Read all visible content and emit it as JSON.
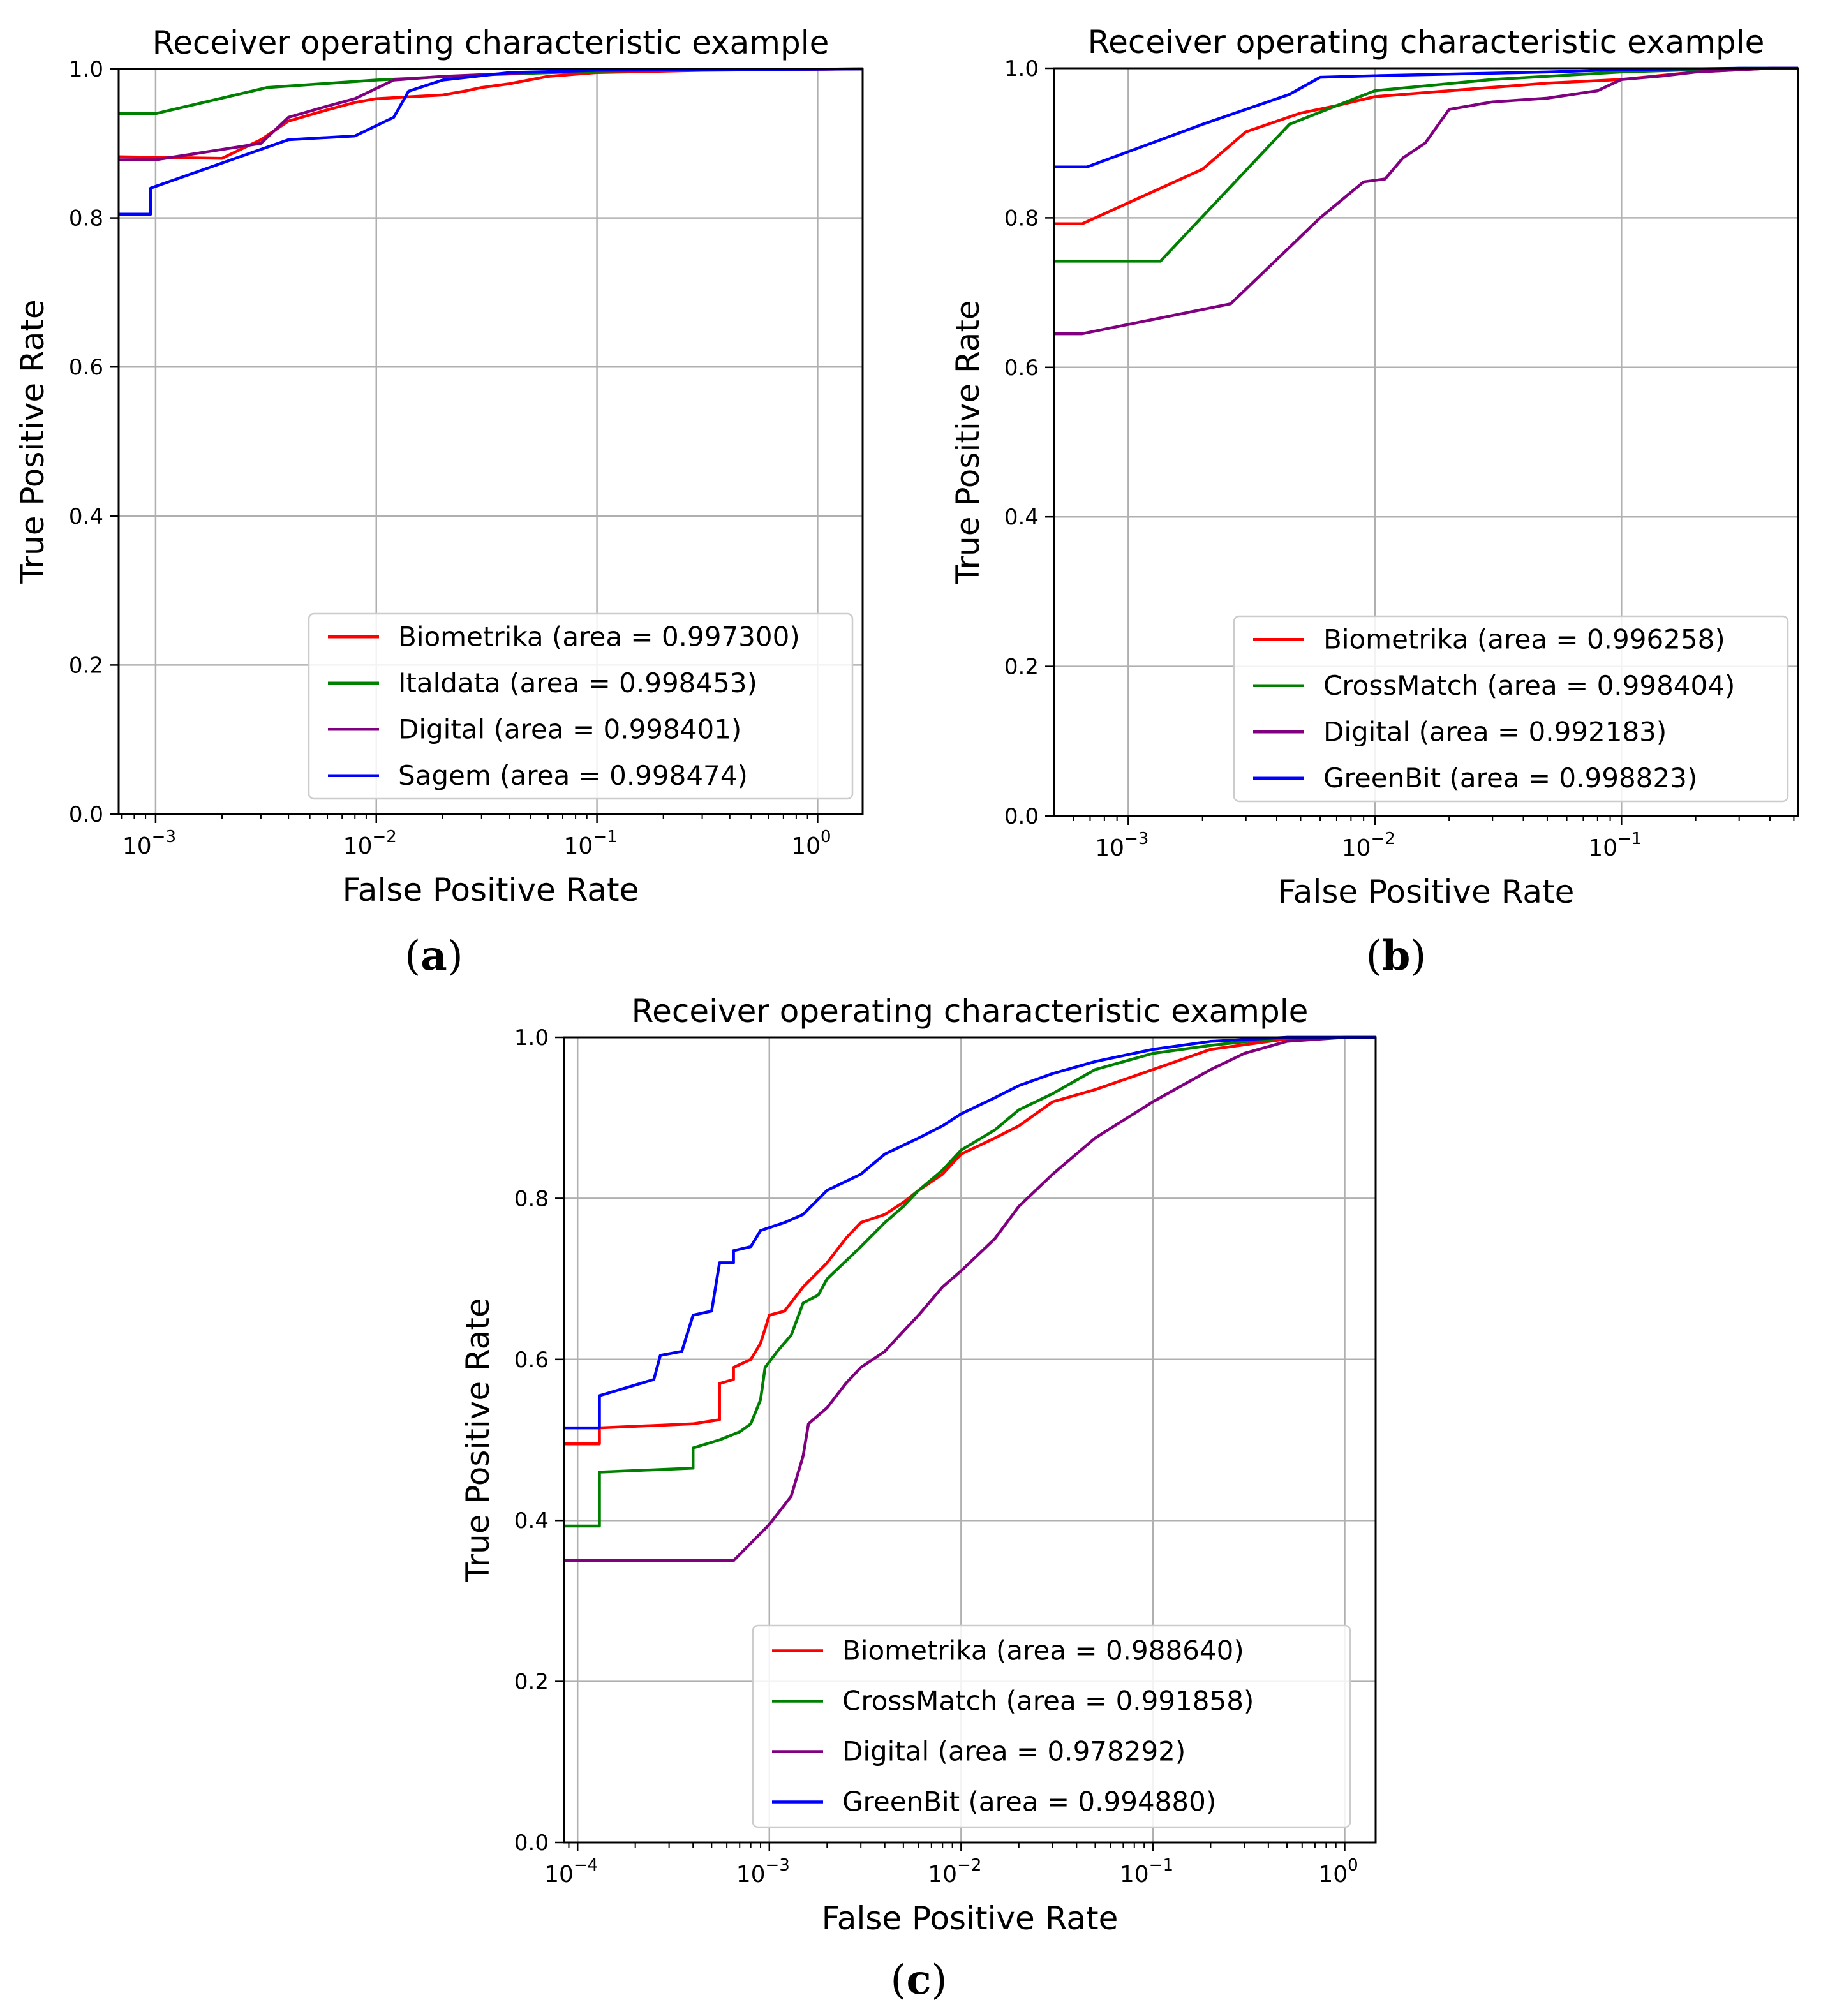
{
  "chart_data": [
    {
      "panel_label": "(a)",
      "label_letter": "a",
      "type": "line",
      "title": "Receiver operating characteristic example",
      "xlabel": "False Positive Rate",
      "ylabel": "True Positive Rate",
      "xscale": "log",
      "xlim": [
        0.00068,
        1.6
      ],
      "ylim": [
        0.0,
        1.0
      ],
      "xticks": [
        {
          "exp": "−3",
          "value": 0.001
        },
        {
          "exp": "−2",
          "value": 0.01
        },
        {
          "exp": "−1",
          "value": 0.1
        },
        {
          "exp": "0",
          "value": 1
        }
      ],
      "tick_base": "10",
      "yticks": [
        "0.0",
        "0.2",
        "0.4",
        "0.6",
        "0.8",
        "1.0"
      ],
      "grid": true,
      "legend_position": "lower-right",
      "series": [
        {
          "name": "Biometrika (area = 0.997300)",
          "color": "#ff0000",
          "points": [
            [
              0.00068,
              0.882
            ],
            [
              0.002,
              0.88
            ],
            [
              0.003,
              0.905
            ],
            [
              0.004,
              0.93
            ],
            [
              0.006,
              0.945
            ],
            [
              0.008,
              0.955
            ],
            [
              0.01,
              0.96
            ],
            [
              0.02,
              0.965
            ],
            [
              0.025,
              0.97
            ],
            [
              0.03,
              0.975
            ],
            [
              0.04,
              0.98
            ],
            [
              0.06,
              0.99
            ],
            [
              0.1,
              0.995
            ],
            [
              0.3,
              0.998
            ],
            [
              1.6,
              1.0
            ]
          ]
        },
        {
          "name": "Italdata (area = 0.998453)",
          "color": "#008000",
          "points": [
            [
              0.00068,
              0.94
            ],
            [
              0.001,
              0.94
            ],
            [
              0.0032,
              0.975
            ],
            [
              0.01,
              0.985
            ],
            [
              0.03,
              0.992
            ],
            [
              0.1,
              0.997
            ],
            [
              0.3,
              0.999
            ],
            [
              1.6,
              1.0
            ]
          ]
        },
        {
          "name": "Digital (area = 0.998401)",
          "color": "#800080",
          "points": [
            [
              0.00068,
              0.878
            ],
            [
              0.001,
              0.878
            ],
            [
              0.003,
              0.9
            ],
            [
              0.004,
              0.935
            ],
            [
              0.006,
              0.95
            ],
            [
              0.008,
              0.96
            ],
            [
              0.012,
              0.985
            ],
            [
              0.02,
              0.99
            ],
            [
              0.05,
              0.995
            ],
            [
              0.1,
              0.998
            ],
            [
              1.6,
              1.0
            ]
          ]
        },
        {
          "name": "Sagem (area = 0.998474)",
          "color": "#0000ff",
          "points": [
            [
              0.00068,
              0.805
            ],
            [
              0.00095,
              0.805
            ],
            [
              0.00095,
              0.84
            ],
            [
              0.004,
              0.905
            ],
            [
              0.008,
              0.91
            ],
            [
              0.012,
              0.935
            ],
            [
              0.014,
              0.97
            ],
            [
              0.02,
              0.985
            ],
            [
              0.04,
              0.995
            ],
            [
              0.1,
              0.998
            ],
            [
              1.6,
              1.0
            ]
          ]
        }
      ]
    },
    {
      "panel_label": "(b)",
      "label_letter": "b",
      "type": "line",
      "title": "Receiver operating characteristic example",
      "xlabel": "False Positive Rate",
      "ylabel": "True Positive Rate",
      "xscale": "log",
      "xlim": [
        0.0005,
        0.52
      ],
      "ylim": [
        0.0,
        1.0
      ],
      "xticks": [
        {
          "exp": "−3",
          "value": 0.001
        },
        {
          "exp": "−2",
          "value": 0.01
        },
        {
          "exp": "−1",
          "value": 0.1
        }
      ],
      "tick_base": "10",
      "yticks": [
        "0.0",
        "0.2",
        "0.4",
        "0.6",
        "0.8",
        "1.0"
      ],
      "grid": true,
      "legend_position": "lower-right",
      "series": [
        {
          "name": "Biometrika (area = 0.996258)",
          "color": "#ff0000",
          "points": [
            [
              0.0005,
              0.792
            ],
            [
              0.00065,
              0.792
            ],
            [
              0.002,
              0.865
            ],
            [
              0.003,
              0.915
            ],
            [
              0.005,
              0.94
            ],
            [
              0.007,
              0.95
            ],
            [
              0.01,
              0.962
            ],
            [
              0.02,
              0.97
            ],
            [
              0.05,
              0.98
            ],
            [
              0.1,
              0.985
            ],
            [
              0.2,
              0.995
            ],
            [
              0.4,
              1.0
            ],
            [
              0.52,
              1.0
            ]
          ]
        },
        {
          "name": "CrossMatch (area = 0.998404)",
          "color": "#008000",
          "points": [
            [
              0.0005,
              0.742
            ],
            [
              0.00135,
              0.742
            ],
            [
              0.0045,
              0.925
            ],
            [
              0.007,
              0.95
            ],
            [
              0.01,
              0.97
            ],
            [
              0.03,
              0.985
            ],
            [
              0.1,
              0.995
            ],
            [
              0.3,
              1.0
            ],
            [
              0.52,
              1.0
            ]
          ]
        },
        {
          "name": "Digital (area = 0.992183)",
          "color": "#800080",
          "points": [
            [
              0.0005,
              0.645
            ],
            [
              0.00065,
              0.645
            ],
            [
              0.0026,
              0.685
            ],
            [
              0.006,
              0.8
            ],
            [
              0.009,
              0.848
            ],
            [
              0.011,
              0.852
            ],
            [
              0.013,
              0.88
            ],
            [
              0.016,
              0.9
            ],
            [
              0.02,
              0.945
            ],
            [
              0.03,
              0.955
            ],
            [
              0.05,
              0.96
            ],
            [
              0.08,
              0.97
            ],
            [
              0.1,
              0.985
            ],
            [
              0.15,
              0.99
            ],
            [
              0.2,
              0.995
            ],
            [
              0.4,
              1.0
            ],
            [
              0.52,
              1.0
            ]
          ]
        },
        {
          "name": "GreenBit (area = 0.998823)",
          "color": "#0000ff",
          "points": [
            [
              0.0005,
              0.868
            ],
            [
              0.00068,
              0.868
            ],
            [
              0.002,
              0.925
            ],
            [
              0.0045,
              0.965
            ],
            [
              0.006,
              0.988
            ],
            [
              0.01,
              0.99
            ],
            [
              0.05,
              0.995
            ],
            [
              0.1,
              0.998
            ],
            [
              0.3,
              1.0
            ],
            [
              0.52,
              1.0
            ]
          ]
        }
      ]
    },
    {
      "panel_label": "(c)",
      "label_letter": "c",
      "type": "line",
      "title": "Receiver operating characteristic example",
      "xlabel": "False Positive Rate",
      "ylabel": "True Positive Rate",
      "xscale": "log",
      "xlim": [
        8.5e-05,
        1.45
      ],
      "ylim": [
        0.0,
        1.0
      ],
      "xticks": [
        {
          "exp": "−4",
          "value": 0.0001
        },
        {
          "exp": "−3",
          "value": 0.001
        },
        {
          "exp": "−2",
          "value": 0.01
        },
        {
          "exp": "−1",
          "value": 0.1
        },
        {
          "exp": "0",
          "value": 1
        }
      ],
      "tick_base": "10",
      "yticks": [
        "0.0",
        "0.2",
        "0.4",
        "0.6",
        "0.8",
        "1.0"
      ],
      "grid": true,
      "legend_position": "lower-right",
      "series": [
        {
          "name": "Biometrika (area = 0.988640)",
          "color": "#ff0000",
          "points": [
            [
              8.5e-05,
              0.495
            ],
            [
              0.00013,
              0.495
            ],
            [
              0.00013,
              0.515
            ],
            [
              0.0004,
              0.52
            ],
            [
              0.00055,
              0.525
            ],
            [
              0.00055,
              0.57
            ],
            [
              0.00065,
              0.575
            ],
            [
              0.00065,
              0.59
            ],
            [
              0.0008,
              0.6
            ],
            [
              0.0009,
              0.62
            ],
            [
              0.001,
              0.655
            ],
            [
              0.0012,
              0.66
            ],
            [
              0.0015,
              0.69
            ],
            [
              0.002,
              0.72
            ],
            [
              0.0025,
              0.75
            ],
            [
              0.003,
              0.77
            ],
            [
              0.004,
              0.78
            ],
            [
              0.005,
              0.795
            ],
            [
              0.006,
              0.81
            ],
            [
              0.008,
              0.83
            ],
            [
              0.01,
              0.855
            ],
            [
              0.015,
              0.875
            ],
            [
              0.02,
              0.89
            ],
            [
              0.03,
              0.92
            ],
            [
              0.05,
              0.935
            ],
            [
              0.1,
              0.96
            ],
            [
              0.2,
              0.985
            ],
            [
              0.5,
              0.998
            ],
            [
              1.0,
              1.0
            ],
            [
              1.45,
              1.0
            ]
          ]
        },
        {
          "name": "CrossMatch (area = 0.991858)",
          "color": "#008000",
          "points": [
            [
              8.5e-05,
              0.393
            ],
            [
              0.00013,
              0.393
            ],
            [
              0.00013,
              0.46
            ],
            [
              0.0004,
              0.465
            ],
            [
              0.0004,
              0.49
            ],
            [
              0.00055,
              0.5
            ],
            [
              0.0007,
              0.51
            ],
            [
              0.0008,
              0.52
            ],
            [
              0.0009,
              0.55
            ],
            [
              0.00095,
              0.59
            ],
            [
              0.0011,
              0.61
            ],
            [
              0.0013,
              0.63
            ],
            [
              0.0015,
              0.67
            ],
            [
              0.0018,
              0.68
            ],
            [
              0.002,
              0.7
            ],
            [
              0.003,
              0.74
            ],
            [
              0.004,
              0.77
            ],
            [
              0.005,
              0.79
            ],
            [
              0.006,
              0.81
            ],
            [
              0.008,
              0.835
            ],
            [
              0.01,
              0.86
            ],
            [
              0.015,
              0.885
            ],
            [
              0.02,
              0.91
            ],
            [
              0.03,
              0.93
            ],
            [
              0.05,
              0.96
            ],
            [
              0.1,
              0.98
            ],
            [
              0.2,
              0.99
            ],
            [
              0.5,
              1.0
            ],
            [
              1.45,
              1.0
            ]
          ]
        },
        {
          "name": "Digital (area = 0.978292)",
          "color": "#800080",
          "points": [
            [
              8.5e-05,
              0.35
            ],
            [
              0.00065,
              0.35
            ],
            [
              0.001,
              0.395
            ],
            [
              0.0013,
              0.43
            ],
            [
              0.0015,
              0.48
            ],
            [
              0.0016,
              0.52
            ],
            [
              0.002,
              0.54
            ],
            [
              0.0025,
              0.57
            ],
            [
              0.003,
              0.59
            ],
            [
              0.004,
              0.61
            ],
            [
              0.005,
              0.635
            ],
            [
              0.006,
              0.655
            ],
            [
              0.008,
              0.69
            ],
            [
              0.01,
              0.71
            ],
            [
              0.015,
              0.75
            ],
            [
              0.02,
              0.79
            ],
            [
              0.03,
              0.83
            ],
            [
              0.05,
              0.875
            ],
            [
              0.1,
              0.92
            ],
            [
              0.2,
              0.96
            ],
            [
              0.3,
              0.98
            ],
            [
              0.5,
              0.995
            ],
            [
              1.0,
              1.0
            ],
            [
              1.45,
              1.0
            ]
          ]
        },
        {
          "name": "GreenBit (area = 0.994880)",
          "color": "#0000ff",
          "points": [
            [
              8.5e-05,
              0.515
            ],
            [
              0.00013,
              0.515
            ],
            [
              0.00013,
              0.555
            ],
            [
              0.00025,
              0.575
            ],
            [
              0.00027,
              0.605
            ],
            [
              0.00035,
              0.61
            ],
            [
              0.0004,
              0.655
            ],
            [
              0.0005,
              0.66
            ],
            [
              0.00055,
              0.72
            ],
            [
              0.00065,
              0.72
            ],
            [
              0.00065,
              0.735
            ],
            [
              0.0008,
              0.74
            ],
            [
              0.0009,
              0.76
            ],
            [
              0.0012,
              0.77
            ],
            [
              0.0015,
              0.78
            ],
            [
              0.002,
              0.81
            ],
            [
              0.003,
              0.83
            ],
            [
              0.004,
              0.855
            ],
            [
              0.006,
              0.875
            ],
            [
              0.008,
              0.89
            ],
            [
              0.01,
              0.905
            ],
            [
              0.015,
              0.925
            ],
            [
              0.02,
              0.94
            ],
            [
              0.03,
              0.955
            ],
            [
              0.05,
              0.97
            ],
            [
              0.1,
              0.985
            ],
            [
              0.2,
              0.995
            ],
            [
              0.5,
              1.0
            ],
            [
              1.45,
              1.0
            ]
          ]
        }
      ]
    }
  ]
}
